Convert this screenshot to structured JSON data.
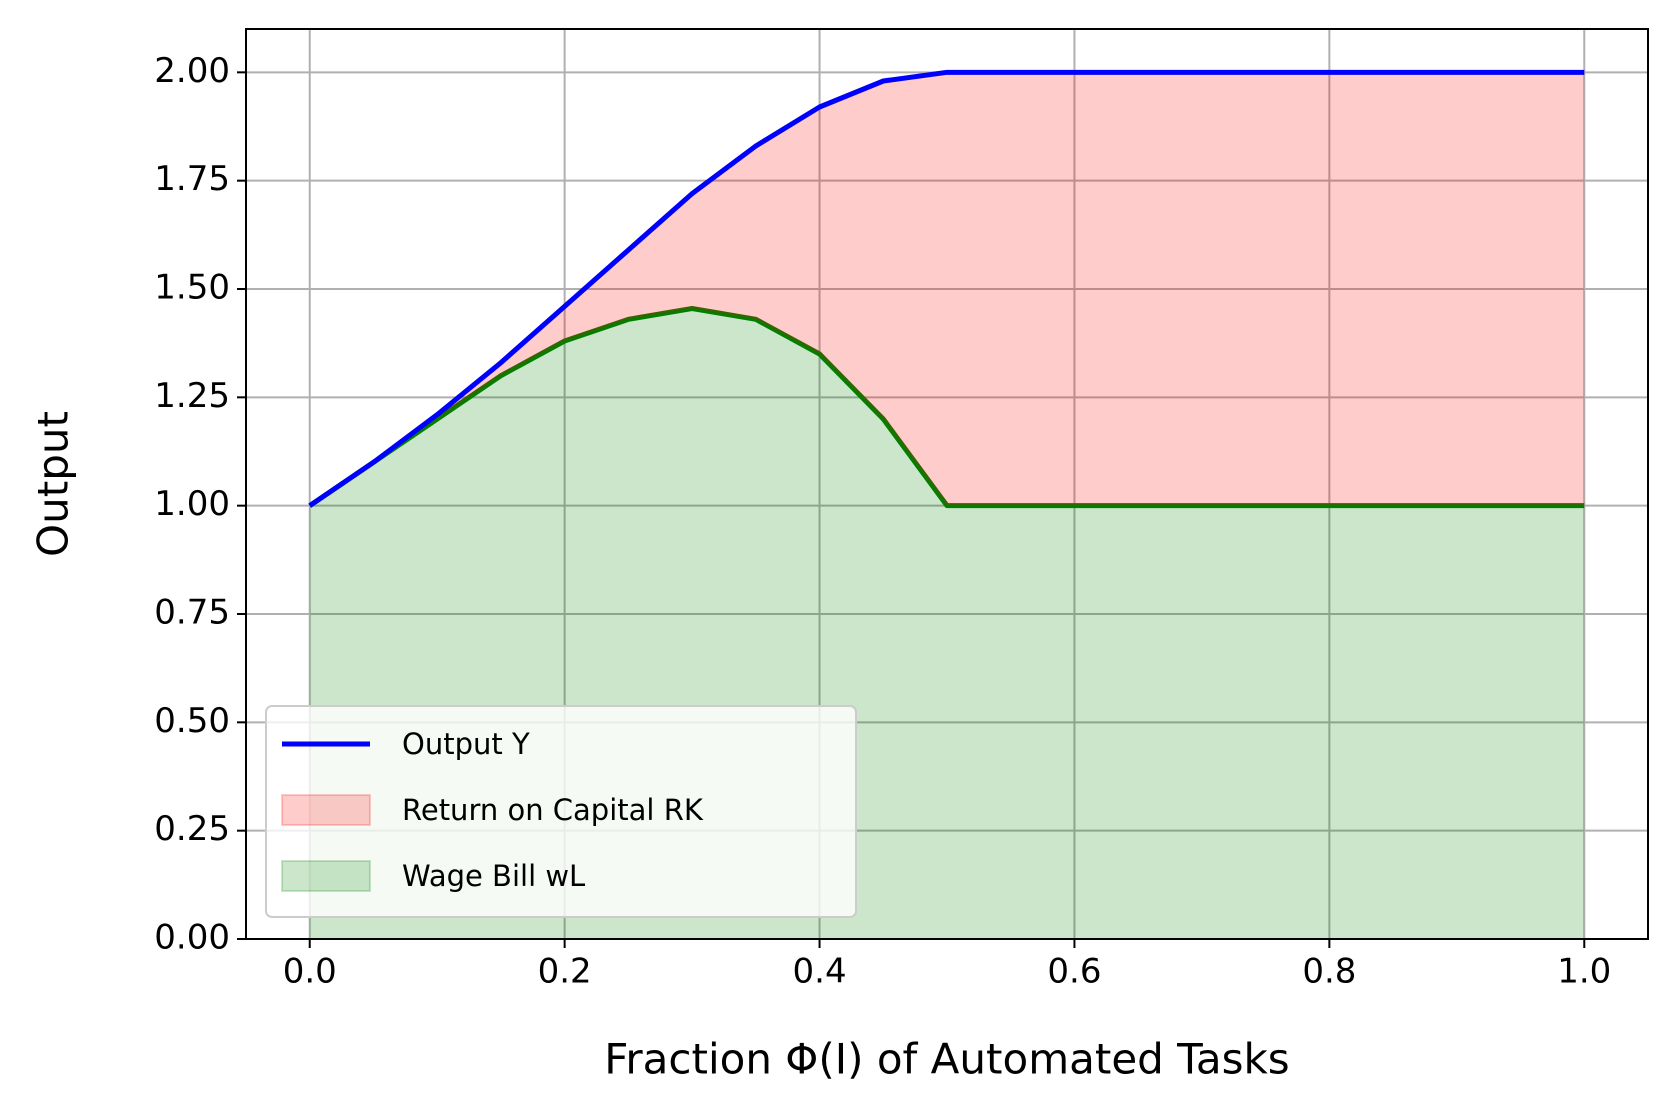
{
  "chart_data": {
    "type": "stacked-area",
    "x_label": "Fraction Φ(I) of Automated Tasks",
    "y_label": "Output",
    "x": [
      0,
      0.05,
      0.1,
      0.15,
      0.2,
      0.25,
      0.3,
      0.35,
      0.4,
      0.45,
      0.5,
      1.0
    ],
    "series": [
      {
        "name": "Output Y",
        "kind": "line",
        "color": "#0000ff",
        "values": [
          1.0,
          1.1,
          1.21,
          1.33,
          1.46,
          1.59,
          1.72,
          1.83,
          1.92,
          1.98,
          2.0,
          2.0
        ]
      },
      {
        "name": "Return on Capital RK",
        "kind": "area",
        "color": "#ff0000",
        "values": [
          0,
          0,
          0.01,
          0.03,
          0.08,
          0.16,
          0.265,
          0.4,
          0.57,
          0.78,
          1.0,
          1.0
        ]
      },
      {
        "name": "Wage Bill wL",
        "kind": "area",
        "color": "#008000",
        "values": [
          1.0,
          1.1,
          1.2,
          1.3,
          1.38,
          1.43,
          1.455,
          1.43,
          1.35,
          1.2,
          1.0,
          1.0
        ]
      }
    ],
    "xlim": [
      -0.05,
      1.05
    ],
    "ylim": [
      0,
      2.1
    ],
    "xticks": [
      {
        "value": 0,
        "label": "0.0"
      },
      0.2,
      0.4,
      0.6,
      0.8,
      {
        "value": 1,
        "label": "1.0"
      }
    ],
    "yticks": [
      {
        "value": 0,
        "label": "0.00"
      },
      {
        "value": 0.25,
        "label": "0.25"
      },
      {
        "value": 0.5,
        "label": "0.50"
      },
      {
        "value": 0.75,
        "label": "0.75"
      },
      {
        "value": 1,
        "label": "1.00"
      },
      {
        "value": 1.25,
        "label": "1.25"
      },
      {
        "value": 1.5,
        "label": "1.50"
      },
      {
        "value": 1.75,
        "label": "1.75"
      },
      {
        "value": 2,
        "label": "2.00"
      }
    ],
    "grid": true,
    "legend": "lower left"
  }
}
